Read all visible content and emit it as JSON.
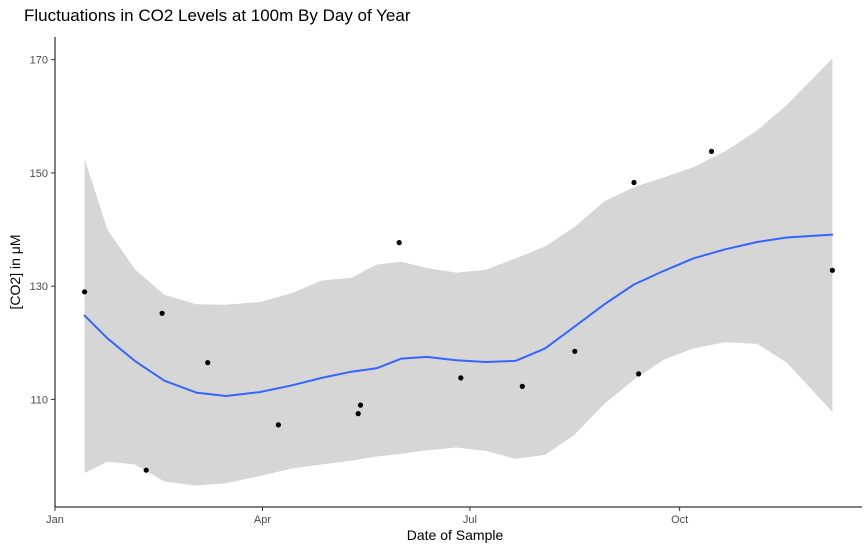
{
  "chart_data": {
    "type": "scatter",
    "title": "Fluctuations in CO2 Levels at 100m By Day of Year",
    "xlabel": "Date of Sample",
    "ylabel": "[CO2] in μM",
    "x_tick_labels": [
      {
        "label": "Jan",
        "date": "2000-01-01"
      },
      {
        "label": "Apr",
        "date": "2000-04-01"
      },
      {
        "label": "Jul",
        "date": "2000-07-01"
      },
      {
        "label": "Oct",
        "date": "2000-10-01"
      }
    ],
    "y_ticks": [
      110,
      130,
      150,
      170
    ],
    "xlim": [
      "2000-01-01",
      "2000-12-20"
    ],
    "ylim": [
      91,
      174
    ],
    "grid": false,
    "points": [
      {
        "x": "2000-01-14",
        "y": 129.0
      },
      {
        "x": "2000-02-10",
        "y": 97.5
      },
      {
        "x": "2000-02-17",
        "y": 125.2
      },
      {
        "x": "2000-03-08",
        "y": 116.5
      },
      {
        "x": "2000-04-08",
        "y": 105.5
      },
      {
        "x": "2000-05-13",
        "y": 107.5
      },
      {
        "x": "2000-05-14",
        "y": 109.0
      },
      {
        "x": "2000-05-31",
        "y": 137.7
      },
      {
        "x": "2000-06-27",
        "y": 113.8
      },
      {
        "x": "2000-07-24",
        "y": 112.3
      },
      {
        "x": "2000-08-16",
        "y": 118.5
      },
      {
        "x": "2000-09-11",
        "y": 148.3
      },
      {
        "x": "2000-09-13",
        "y": 114.5
      },
      {
        "x": "2000-10-15",
        "y": 153.8
      },
      {
        "x": "2000-12-07",
        "y": 132.8
      }
    ],
    "smooth": {
      "color": "#3366FF",
      "band_color": "#d6d6d6",
      "x": [
        "2000-01-14",
        "2000-01-24",
        "2000-02-05",
        "2000-02-18",
        "2000-03-03",
        "2000-03-16",
        "2000-03-31",
        "2000-04-14",
        "2000-04-27",
        "2000-05-10",
        "2000-05-21",
        "2000-06-01",
        "2000-06-12",
        "2000-06-25",
        "2000-07-08",
        "2000-07-21",
        "2000-08-03",
        "2000-08-16",
        "2000-08-29",
        "2000-09-11",
        "2000-09-24",
        "2000-10-07",
        "2000-10-21",
        "2000-11-04",
        "2000-11-17",
        "2000-12-07"
      ],
      "fit": [
        124.8,
        120.8,
        116.8,
        113.3,
        111.2,
        110.6,
        111.3,
        112.5,
        113.8,
        114.9,
        115.5,
        117.2,
        117.5,
        116.9,
        116.6,
        116.8,
        119.0,
        122.9,
        126.8,
        130.3,
        132.7,
        134.9,
        136.5,
        137.8,
        138.6,
        139.1
      ],
      "lower": [
        97.0,
        99.0,
        98.5,
        95.5,
        94.8,
        95.2,
        96.5,
        97.8,
        98.5,
        99.2,
        99.9,
        100.4,
        101.0,
        101.5,
        100.9,
        99.5,
        100.2,
        103.8,
        109.2,
        113.5,
        117.0,
        119.0,
        120.1,
        119.8,
        116.5,
        107.8
      ],
      "upper": [
        152.5,
        140.0,
        133.0,
        128.5,
        126.8,
        126.7,
        127.2,
        128.8,
        131.0,
        131.5,
        133.8,
        134.3,
        133.2,
        132.4,
        132.9,
        134.9,
        137.0,
        140.5,
        145.0,
        147.5,
        149.2,
        151.0,
        153.8,
        157.5,
        162.0,
        170.2
      ]
    }
  }
}
